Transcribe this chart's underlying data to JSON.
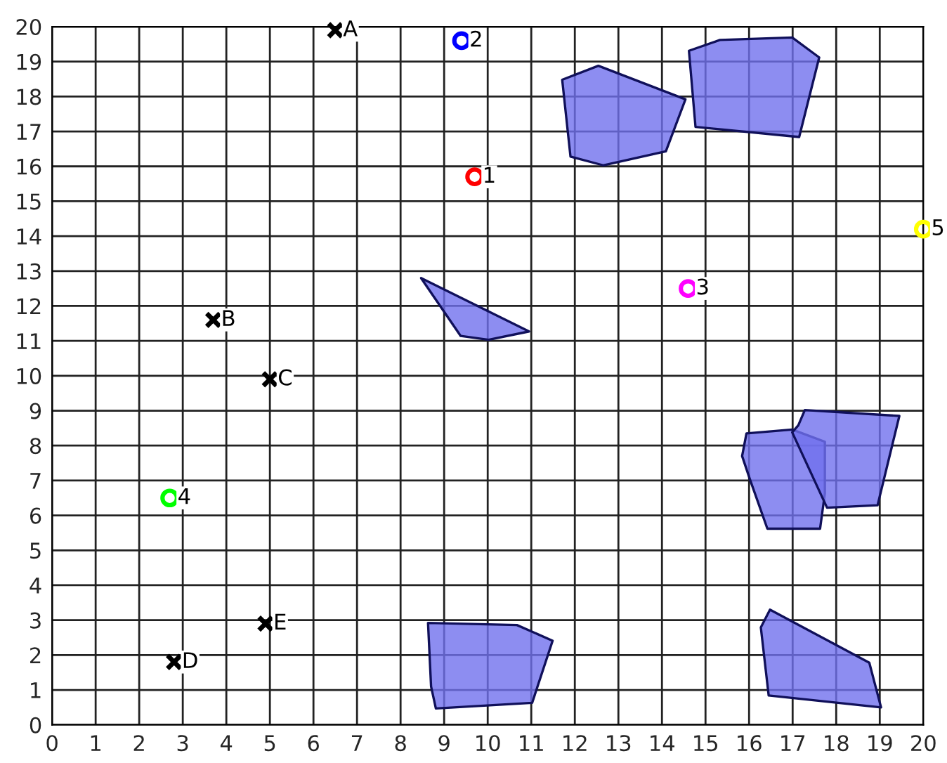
{
  "chart_data": {
    "type": "scatter",
    "xlim": [
      0,
      20
    ],
    "ylim": [
      0,
      20
    ],
    "xticks": [
      0,
      1,
      2,
      3,
      4,
      5,
      6,
      7,
      8,
      9,
      10,
      11,
      12,
      13,
      14,
      15,
      16,
      17,
      18,
      19,
      20
    ],
    "yticks": [
      0,
      1,
      2,
      3,
      4,
      5,
      6,
      7,
      8,
      9,
      10,
      11,
      12,
      13,
      14,
      15,
      16,
      17,
      18,
      19,
      20
    ],
    "grid": true,
    "series": [
      {
        "type": "area",
        "color": "#7070ee",
        "x": [
          11.71,
          12.54,
          14.54,
          14.09,
          12.65,
          11.9
        ],
        "values": [
          18.48,
          18.88,
          17.92,
          16.43,
          16.03,
          16.28
        ]
      },
      {
        "type": "area",
        "color": "#7070ee",
        "x": [
          14.62,
          15.33,
          16.99,
          17.61,
          17.15,
          14.77
        ],
        "values": [
          19.31,
          19.62,
          19.69,
          19.12,
          16.84,
          17.13
        ]
      },
      {
        "type": "area",
        "color": "#7070ee",
        "x": [
          8.47,
          9.38,
          10.02,
          10.95
        ],
        "values": [
          12.8,
          11.14,
          11.03,
          11.27
        ]
      },
      {
        "type": "area",
        "color": "#7070ee",
        "x": [
          15.94,
          16.99,
          17.74,
          17.74,
          17.63,
          16.42,
          16.02,
          15.84
        ],
        "values": [
          8.35,
          8.46,
          8.11,
          6.63,
          5.62,
          5.62,
          7.03,
          7.7
        ]
      },
      {
        "type": "area",
        "color": "#7070ee",
        "x": [
          17.28,
          19.45,
          18.95,
          17.79,
          16.99,
          17.13
        ],
        "values": [
          9.02,
          8.85,
          6.29,
          6.22,
          8.38,
          8.58
        ]
      },
      {
        "type": "area",
        "color": "#7070ee",
        "x": [
          8.63,
          10.67,
          11.49,
          11.02,
          8.81,
          8.7
        ],
        "values": [
          2.92,
          2.86,
          2.41,
          0.63,
          0.47,
          1.1
        ]
      },
      {
        "type": "area",
        "color": "#7070ee",
        "x": [
          16.48,
          18.76,
          19.03,
          16.45,
          16.27
        ],
        "values": [
          3.3,
          1.78,
          0.5,
          0.84,
          2.79
        ]
      },
      {
        "name": "A",
        "color": "#000000",
        "marker": "cross",
        "x": [
          6.5
        ],
        "values": [
          19.9
        ]
      },
      {
        "name": "B",
        "color": "#000000",
        "marker": "cross",
        "x": [
          3.7
        ],
        "values": [
          11.6
        ]
      },
      {
        "name": "C",
        "color": "#000000",
        "marker": "cross",
        "x": [
          5.0
        ],
        "values": [
          9.9
        ]
      },
      {
        "name": "D",
        "color": "#000000",
        "marker": "cross",
        "x": [
          2.8
        ],
        "values": [
          1.8
        ]
      },
      {
        "name": "E",
        "color": "#000000",
        "marker": "cross",
        "x": [
          4.9
        ],
        "values": [
          2.9
        ]
      },
      {
        "name": "1",
        "color": "#ff0000",
        "marker": "circle",
        "x": [
          9.7
        ],
        "values": [
          15.7
        ]
      },
      {
        "name": "2",
        "color": "#0000ff",
        "marker": "circle",
        "x": [
          9.4
        ],
        "values": [
          19.6
        ]
      },
      {
        "name": "3",
        "color": "#ff00ff",
        "marker": "circle",
        "x": [
          14.6
        ],
        "values": [
          12.5
        ]
      },
      {
        "name": "4",
        "color": "#00ff00",
        "marker": "circle",
        "x": [
          2.7
        ],
        "values": [
          6.5
        ]
      },
      {
        "name": "5",
        "color": "#ffff00",
        "marker": "circle",
        "x": [
          20.0
        ],
        "values": [
          14.2
        ]
      }
    ]
  }
}
